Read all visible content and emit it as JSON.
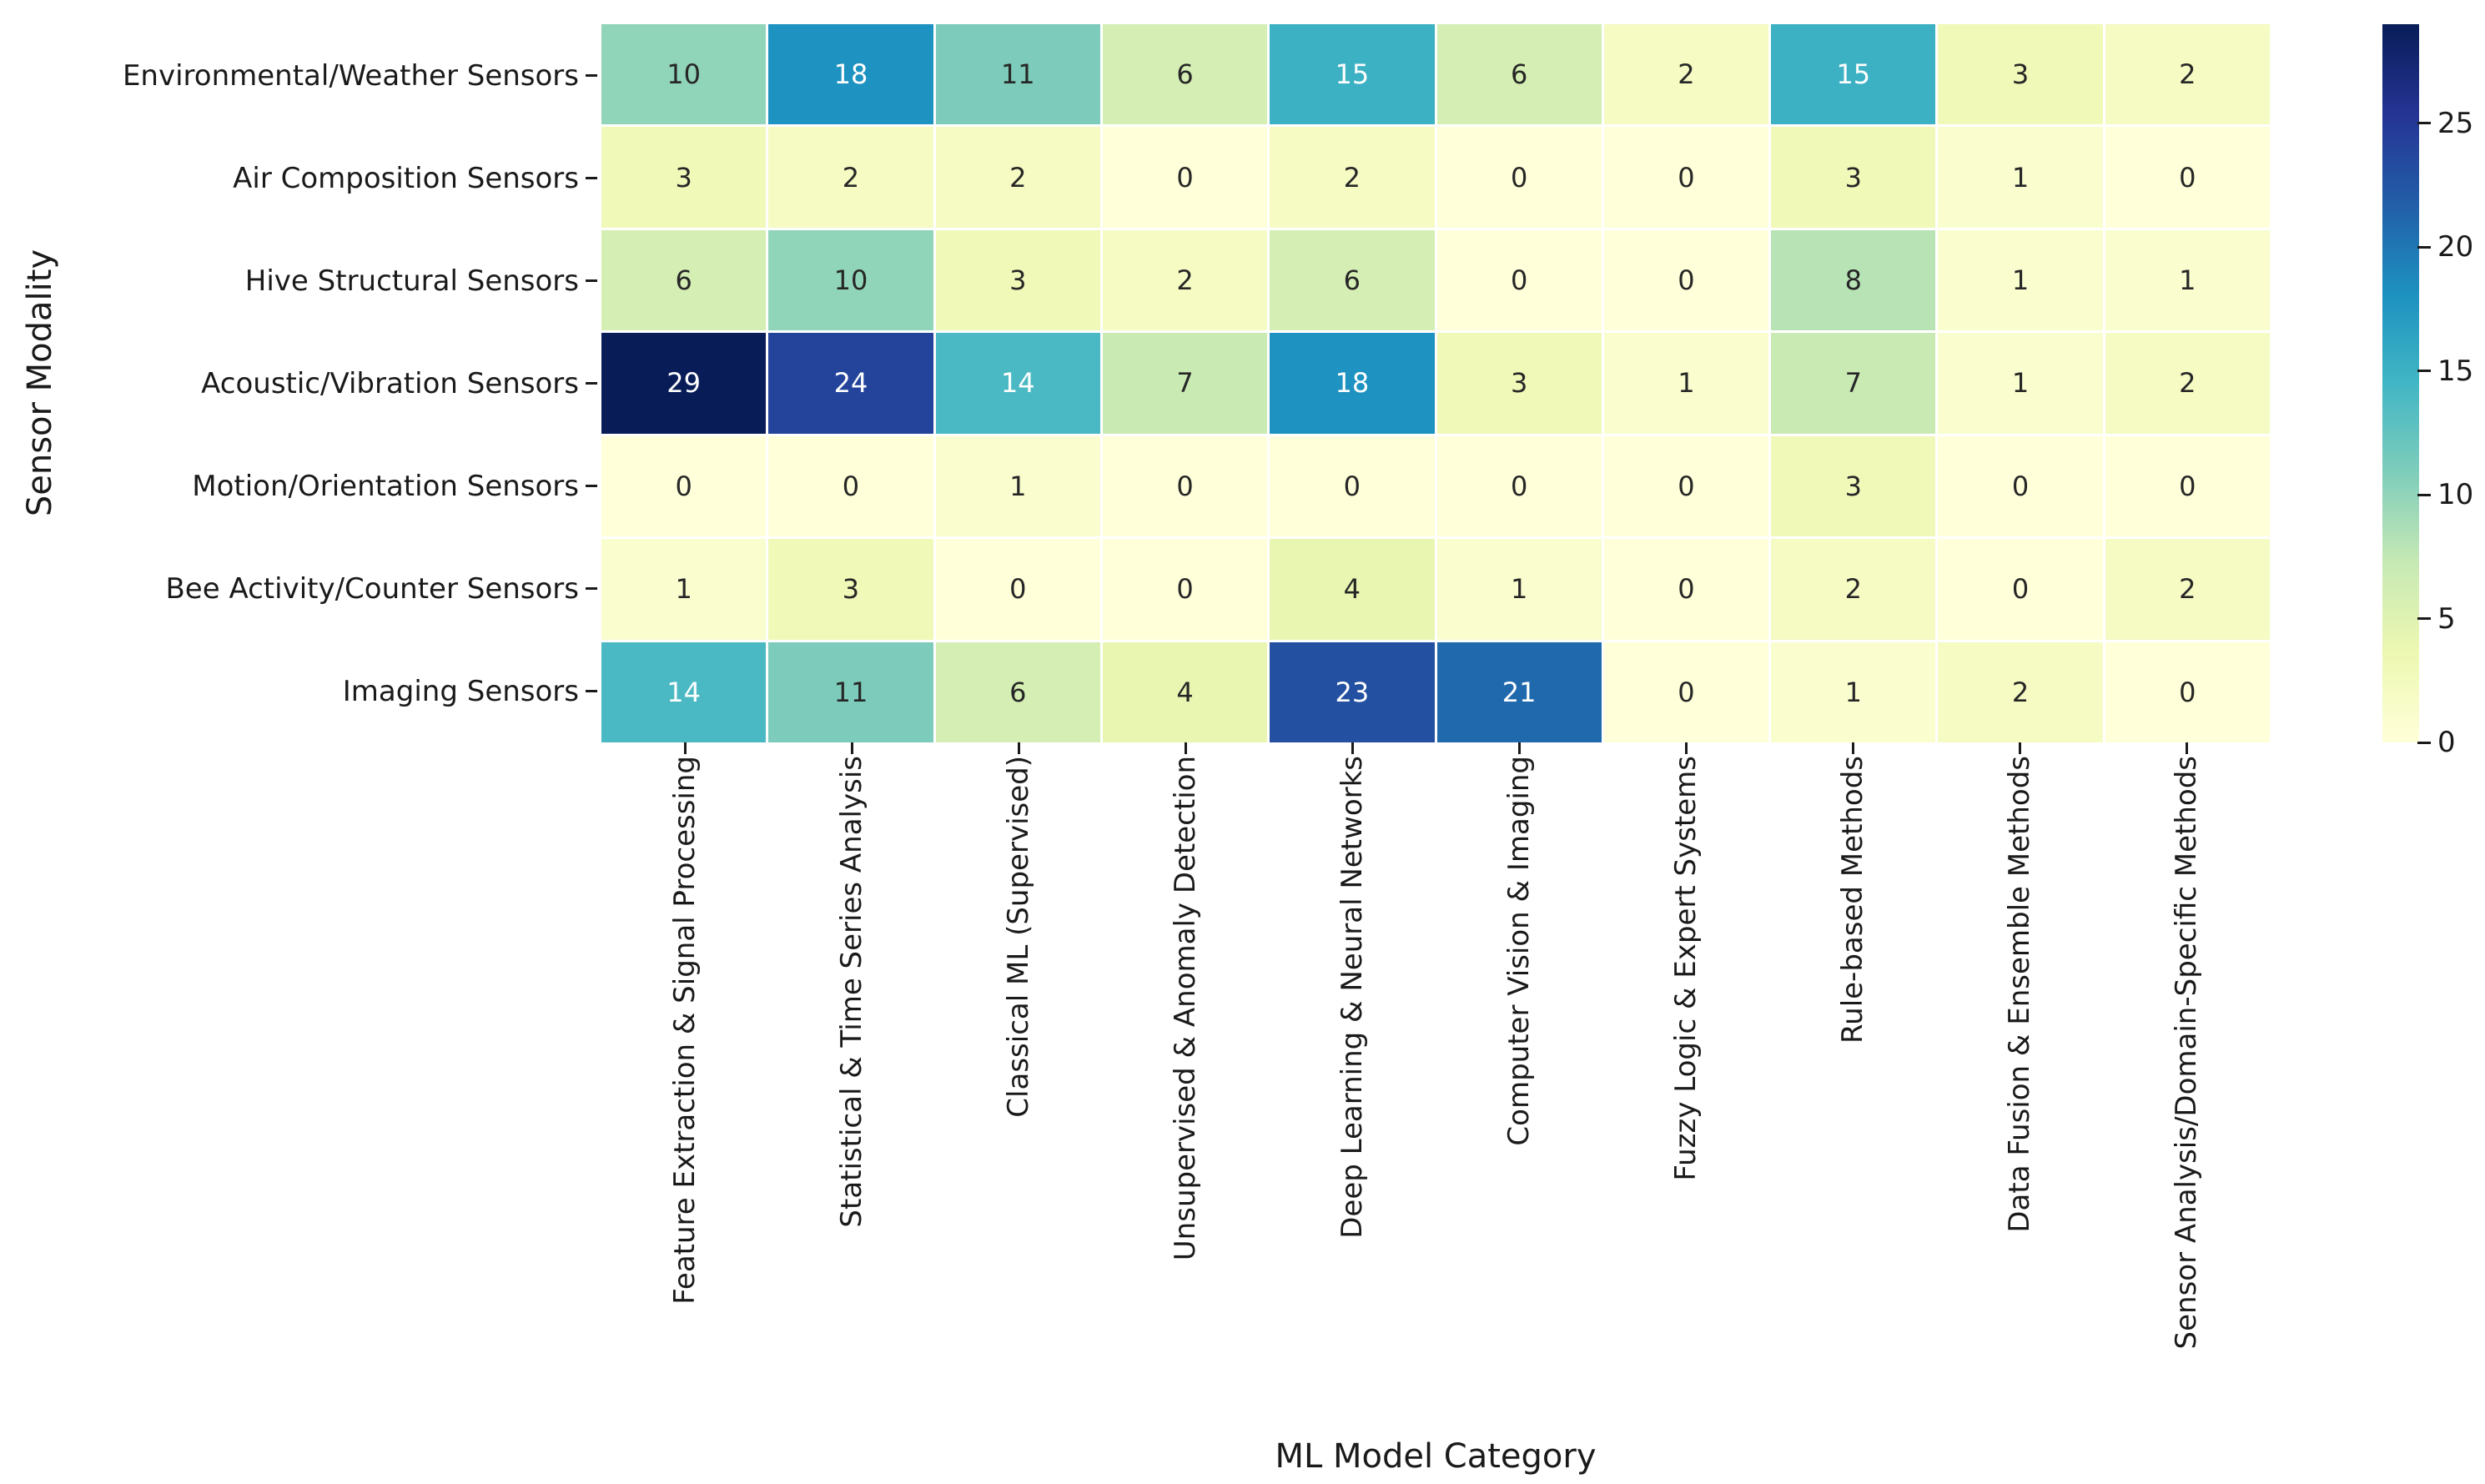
{
  "figure": {
    "background": "#ffffff"
  },
  "chart_data": {
    "type": "heatmap",
    "title": "",
    "xlabel": "ML Model Category",
    "ylabel": "Sensor Modality",
    "rows": [
      "Environmental/Weather Sensors",
      "Air Composition Sensors",
      "Hive Structural Sensors",
      "Acoustic/Vibration Sensors",
      "Motion/Orientation Sensors",
      "Bee Activity/Counter Sensors",
      "Imaging Sensors"
    ],
    "columns": [
      "Feature Extraction & Signal Processing",
      "Statistical & Time Series Analysis",
      "Classical ML (Supervised)",
      "Unsupervised & Anomaly Detection",
      "Deep Learning & Neural Networks",
      "Computer Vision & Imaging",
      "Fuzzy Logic & Expert Systems",
      "Rule-based Methods",
      "Data Fusion & Ensemble Methods",
      "Sensor Analysis/Domain-Specific Methods"
    ],
    "values": [
      [
        10,
        18,
        11,
        6,
        15,
        6,
        2,
        15,
        3,
        2
      ],
      [
        3,
        2,
        2,
        0,
        2,
        0,
        0,
        3,
        1,
        0
      ],
      [
        6,
        10,
        3,
        2,
        6,
        0,
        0,
        8,
        1,
        1
      ],
      [
        29,
        24,
        14,
        7,
        18,
        3,
        1,
        7,
        1,
        2
      ],
      [
        0,
        0,
        1,
        0,
        0,
        0,
        0,
        3,
        0,
        0
      ],
      [
        1,
        3,
        0,
        0,
        4,
        1,
        0,
        2,
        0,
        2
      ],
      [
        14,
        11,
        6,
        4,
        23,
        21,
        0,
        1,
        2,
        0
      ]
    ],
    "annotated": true,
    "vmin": 0,
    "vmax": 29,
    "colormap": {
      "name": "YlGnBu",
      "anchors": [
        "#ffffd9",
        "#edf8b1",
        "#c7e9b4",
        "#7fcdbb",
        "#41b6c4",
        "#1d91c0",
        "#225ea8",
        "#253494",
        "#081d58"
      ]
    },
    "colorbar_ticks": [
      0,
      5,
      10,
      15,
      20,
      25
    ],
    "legend_position": "right-colorbar",
    "grid_line_color": "#ffffff",
    "cell_text_colors": {
      "light": "#262626",
      "dark": "#ffffff"
    }
  }
}
